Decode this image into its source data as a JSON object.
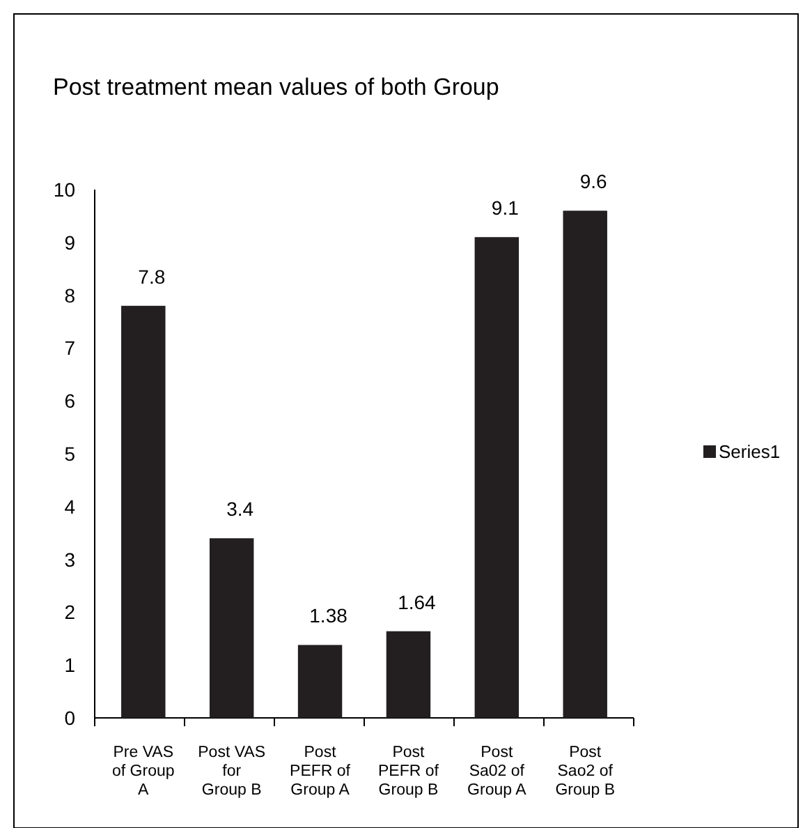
{
  "chart_data": {
    "type": "bar",
    "title": "Post treatment mean values of both Group",
    "categories": [
      "Pre VAS of Group A",
      "Post VAS for Group B",
      "Post PEFR of Group A",
      "Post PEFR of Group B",
      "Post Sa02 of Group A",
      "Post Sao2 of Group B"
    ],
    "series": [
      {
        "name": "Series1",
        "color": "#231f20",
        "values": [
          7.8,
          3.4,
          1.38,
          1.64,
          9.1,
          9.6
        ]
      }
    ],
    "ylim": [
      0,
      10
    ],
    "yticks": [
      0,
      1,
      2,
      3,
      4,
      5,
      6,
      7,
      8,
      9,
      10
    ],
    "data_labels": true,
    "legend": "right",
    "grid": false
  }
}
